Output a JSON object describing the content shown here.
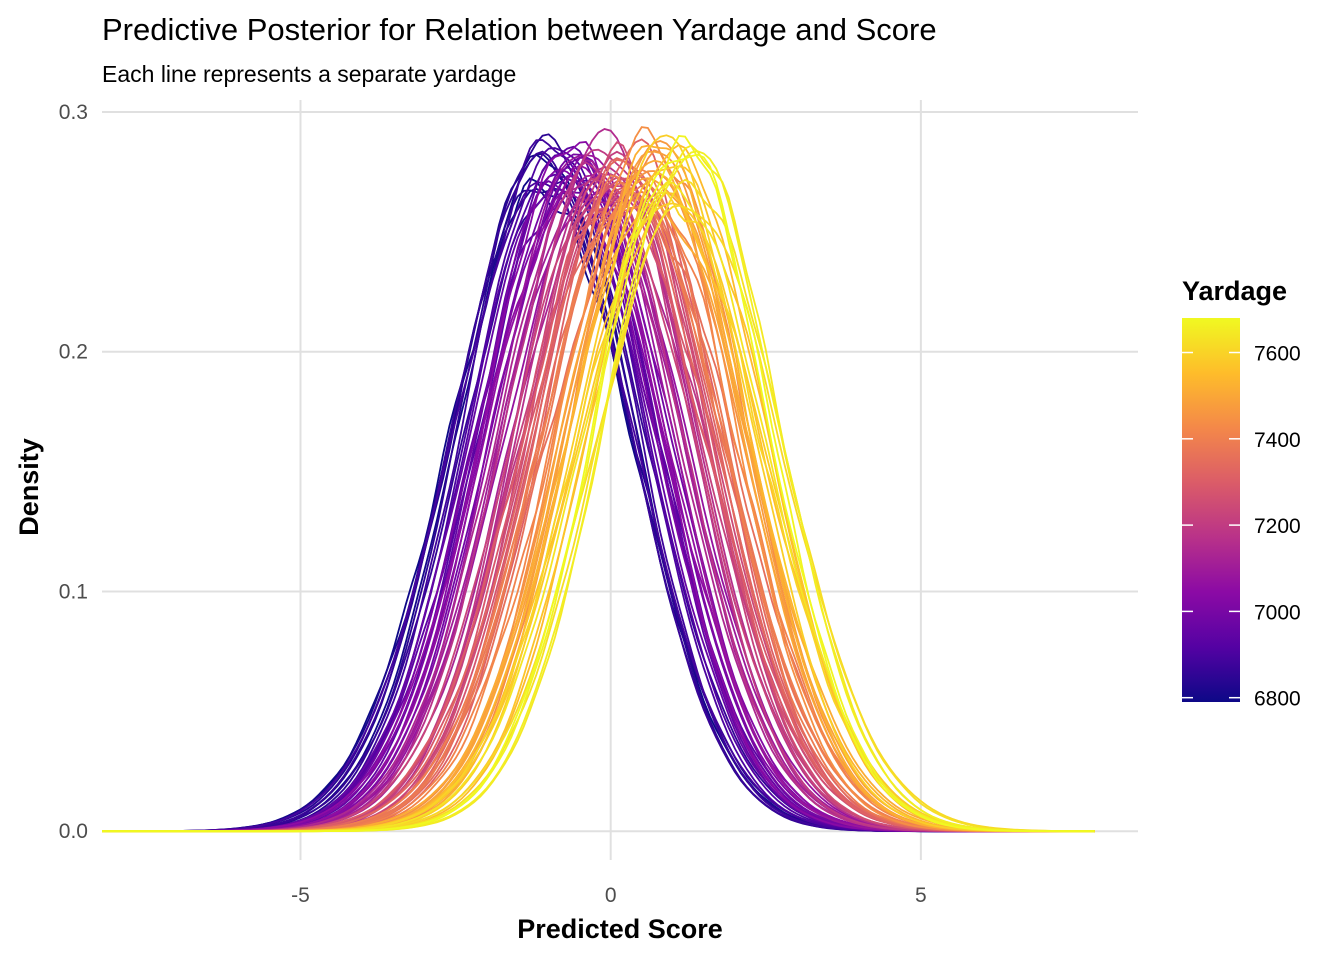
{
  "chart_data": {
    "type": "line",
    "title": "Predictive Posterior for Relation between Yardage and Score",
    "subtitle": "Each line represents a separate yardage",
    "xlabel": "Predicted Score",
    "ylabel": "Density",
    "xlim": [
      -8.2,
      8.5
    ],
    "ylim": [
      -0.012,
      0.305
    ],
    "x_ticks": [
      -5,
      0,
      5
    ],
    "x_tick_labels": [
      "-5",
      "0",
      "5"
    ],
    "y_ticks": [
      0.0,
      0.1,
      0.2,
      0.3
    ],
    "y_tick_labels": [
      "0.0",
      "0.1",
      "0.2",
      "0.3"
    ],
    "grid": true,
    "legend": {
      "title": "Yardage",
      "type": "colorbar",
      "placement": "right",
      "range": [
        6790,
        7680
      ],
      "ticks": [
        6800,
        7000,
        7200,
        7400,
        7600
      ],
      "tick_labels": [
        "6800",
        "7000",
        "7200",
        "7400",
        "7600"
      ],
      "colors": [
        "#0d0887",
        "#5402a3",
        "#8b0aa5",
        "#b93289",
        "#db5c68",
        "#f48849",
        "#febd2a",
        "#f0f921"
      ]
    },
    "series_summary": {
      "count": 80,
      "description": "density curves of predicted score, one per yardage",
      "x_range": [
        -8.2,
        7.8
      ],
      "peak_density_range": [
        0.26,
        0.29
      ],
      "mode_at_min_yardage": -1.2,
      "mode_at_max_yardage": 1.3,
      "sd": 1.45
    }
  }
}
